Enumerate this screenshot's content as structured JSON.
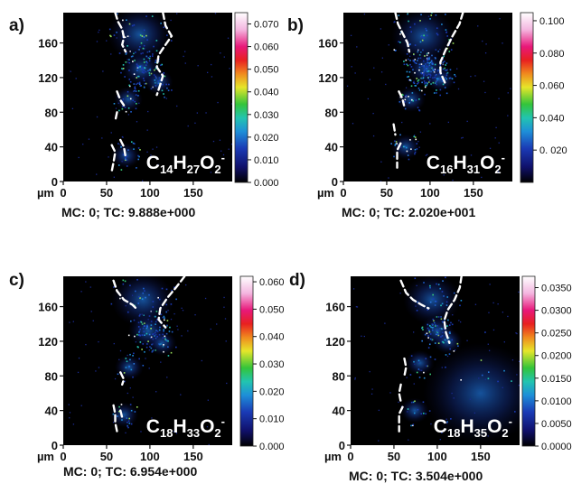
{
  "chart_data": [
    {
      "type": "heatmap",
      "panel_label": "a)",
      "formula": {
        "base": "C",
        "c": "14",
        "h": "H",
        "hn": "27",
        "o": "O",
        "on": "2",
        "charge": "-"
      },
      "xlabel": "µm",
      "xticks": [
        0,
        50,
        100,
        150
      ],
      "yticks": [
        0,
        40,
        80,
        120,
        160
      ],
      "xlim": [
        0,
        195
      ],
      "ylim": [
        0,
        195
      ],
      "colorbar": {
        "min": 0,
        "max": 0.075,
        "ticks": [
          "0.070",
          "0.060",
          "0.050",
          "0.040",
          "0.030",
          "0.020",
          "0.010",
          "0.000"
        ]
      },
      "caption": "MC:  0; TC: 9.888e+000"
    },
    {
      "type": "heatmap",
      "panel_label": "b)",
      "formula": {
        "base": "C",
        "c": "16",
        "h": "H",
        "hn": "31",
        "o": "O",
        "on": "2",
        "charge": "-"
      },
      "xlabel": "µm",
      "xticks": [
        0,
        50,
        100,
        150
      ],
      "yticks": [
        0,
        40,
        80,
        120,
        160
      ],
      "xlim": [
        0,
        195
      ],
      "ylim": [
        0,
        195
      ],
      "colorbar": {
        "min": 0,
        "max": 0.105,
        "ticks": [
          "0.100",
          "0.080",
          "0.060",
          "0.040",
          "0. 020"
        ]
      },
      "caption": "MC:  0; TC: 2.020e+001"
    },
    {
      "type": "heatmap",
      "panel_label": "c)",
      "formula": {
        "base": "C",
        "c": "18",
        "h": "H",
        "hn": "33",
        "o": "O",
        "on": "2",
        "charge": "-"
      },
      "xlabel": "µm",
      "xticks": [
        0,
        50,
        100,
        150
      ],
      "yticks": [
        0,
        40,
        80,
        120,
        160
      ],
      "xlim": [
        0,
        195
      ],
      "ylim": [
        0,
        195
      ],
      "colorbar": {
        "min": 0,
        "max": 0.062,
        "ticks": [
          "0.060",
          "0.050",
          "0.040",
          "0.030",
          "0.020",
          "0.010",
          "0.000"
        ]
      },
      "caption": "MC:  0; TC: 6.954e+000"
    },
    {
      "type": "heatmap",
      "panel_label": "d)",
      "formula": {
        "base": "C",
        "c": "18",
        "h": "H",
        "hn": "35",
        "o": "O",
        "on": "2",
        "charge": "-"
      },
      "xlabel": "µm",
      "xticks": [
        0,
        50,
        100,
        150
      ],
      "yticks": [
        0,
        40,
        80,
        120,
        160
      ],
      "xlim": [
        0,
        195
      ],
      "ylim": [
        0,
        195
      ],
      "colorbar": {
        "min": 0,
        "max": 0.0375,
        "ticks": [
          "0.0350",
          "0.0300",
          "0.0250",
          "0.0200",
          "0.0150",
          "0.0100",
          "0.0050",
          "0.0000"
        ]
      },
      "caption": "MC:  0; TC: 3.504e+000"
    }
  ],
  "colors": {
    "background": "#000000",
    "boundary": "#ffffff",
    "colorbar": [
      "#000000",
      "#10106a",
      "#1a3ab5",
      "#1e8fd8",
      "#22c4b0",
      "#33c43a",
      "#e6e62a",
      "#f08a1e",
      "#e82020",
      "#e8187a",
      "#f4b6e0",
      "#ffffff"
    ]
  }
}
